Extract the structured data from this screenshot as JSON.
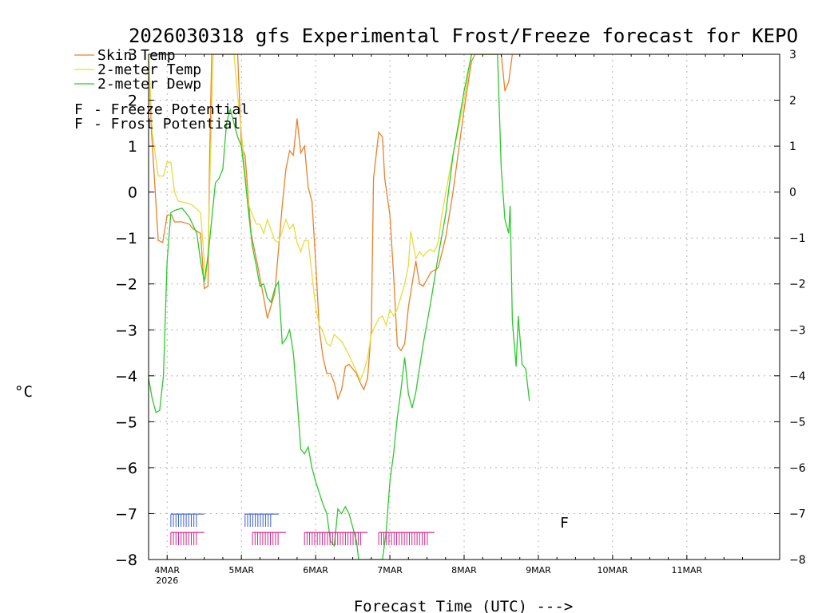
{
  "chart_data": {
    "type": "line",
    "title": "2026030318 gfs Experimental Frost/Freeze forecast for KEPO",
    "xlabel": "Forecast Time (UTC) --->",
    "ylabel": "°C",
    "ylim": [
      -8,
      3
    ],
    "yticks": [
      "3",
      "2",
      "1",
      "0",
      "−1",
      "−2",
      "−3",
      "−4",
      "−5",
      "−6",
      "−7",
      "−8"
    ],
    "xlim_days": [
      -0.25,
      8.25
    ],
    "x_unit": "days since 4MAR 00Z",
    "x_ticks": [
      {
        "label": "4MAR",
        "sub": "2026",
        "day": 0
      },
      {
        "label": "5MAR",
        "sub": "",
        "day": 1
      },
      {
        "label": "6MAR",
        "sub": "",
        "day": 2
      },
      {
        "label": "7MAR",
        "sub": "",
        "day": 3
      },
      {
        "label": "8MAR",
        "sub": "",
        "day": 4
      },
      {
        "label": "9MAR",
        "sub": "",
        "day": 5
      },
      {
        "label": "10MAR",
        "sub": "",
        "day": 6
      },
      {
        "label": "11MAR",
        "sub": "",
        "day": 7
      }
    ],
    "series": [
      {
        "name": "Skin Temp",
        "color": "#e8822a",
        "points": [
          [
            -0.25,
            3
          ],
          [
            -0.21,
            1.3
          ],
          [
            -0.12,
            -1.05
          ],
          [
            -0.06,
            -1.1
          ],
          [
            0.0,
            -0.5
          ],
          [
            0.06,
            -0.5
          ],
          [
            0.1,
            -0.65
          ],
          [
            0.2,
            -0.65
          ],
          [
            0.3,
            -0.7
          ],
          [
            0.35,
            -0.8
          ],
          [
            0.45,
            -0.9
          ],
          [
            0.5,
            -2.1
          ],
          [
            0.55,
            -2.05
          ],
          [
            0.57,
            0.5
          ],
          [
            0.6,
            3
          ],
          [
            0.95,
            3
          ],
          [
            1.0,
            1.0
          ],
          [
            1.05,
            0.8
          ],
          [
            1.13,
            -0.9
          ],
          [
            1.22,
            -1.6
          ],
          [
            1.3,
            -2.3
          ],
          [
            1.35,
            -2.75
          ],
          [
            1.45,
            -2.2
          ],
          [
            1.55,
            -0.3
          ],
          [
            1.6,
            0.5
          ],
          [
            1.65,
            0.9
          ],
          [
            1.7,
            0.8
          ],
          [
            1.75,
            1.6
          ],
          [
            1.8,
            0.85
          ],
          [
            1.85,
            1.0
          ],
          [
            1.9,
            0.1
          ],
          [
            1.95,
            -0.2
          ],
          [
            2.0,
            -1.5
          ],
          [
            2.05,
            -3.0
          ],
          [
            2.1,
            -3.6
          ],
          [
            2.15,
            -3.95
          ],
          [
            2.2,
            -3.95
          ],
          [
            2.25,
            -4.15
          ],
          [
            2.3,
            -4.5
          ],
          [
            2.35,
            -4.3
          ],
          [
            2.4,
            -3.8
          ],
          [
            2.45,
            -3.75
          ],
          [
            2.55,
            -3.95
          ],
          [
            2.6,
            -4.15
          ],
          [
            2.65,
            -4.3
          ],
          [
            2.7,
            -4.05
          ],
          [
            2.75,
            -3.0
          ],
          [
            2.78,
            0.3
          ],
          [
            2.85,
            1.3
          ],
          [
            2.9,
            1.2
          ],
          [
            2.93,
            0.3
          ],
          [
            3.0,
            -0.5
          ],
          [
            3.05,
            -1.8
          ],
          [
            3.1,
            -3.35
          ],
          [
            3.15,
            -3.45
          ],
          [
            3.2,
            -3.3
          ],
          [
            3.25,
            -2.5
          ],
          [
            3.3,
            -2.0
          ],
          [
            3.35,
            -1.5
          ],
          [
            3.4,
            -2.0
          ],
          [
            3.45,
            -2.05
          ],
          [
            3.55,
            -1.75
          ],
          [
            3.65,
            -1.65
          ],
          [
            3.75,
            -1.0
          ],
          [
            3.85,
            0.0
          ],
          [
            4.0,
            1.8
          ],
          [
            4.1,
            2.85
          ],
          [
            4.15,
            3
          ],
          [
            4.5,
            3
          ],
          [
            4.55,
            2.2
          ],
          [
            4.6,
            2.4
          ],
          [
            4.65,
            3
          ]
        ]
      },
      {
        "name": "2-meter Temp",
        "color": "#e6dc3c",
        "points": [
          [
            -0.25,
            3
          ],
          [
            -0.2,
            1.3
          ],
          [
            -0.12,
            0.35
          ],
          [
            -0.05,
            0.35
          ],
          [
            0.0,
            0.65
          ],
          [
            0.05,
            0.65
          ],
          [
            0.1,
            0.0
          ],
          [
            0.15,
            -0.2
          ],
          [
            0.3,
            -0.25
          ],
          [
            0.35,
            -0.3
          ],
          [
            0.45,
            -0.45
          ],
          [
            0.5,
            -1.5
          ],
          [
            0.52,
            -1.9
          ],
          [
            0.55,
            -1.3
          ],
          [
            0.58,
            0.5
          ],
          [
            0.62,
            3
          ],
          [
            0.9,
            3
          ],
          [
            0.95,
            2.1
          ],
          [
            1.0,
            1.3
          ],
          [
            1.05,
            0.4
          ],
          [
            1.1,
            -0.3
          ],
          [
            1.15,
            -0.5
          ],
          [
            1.2,
            -0.7
          ],
          [
            1.25,
            -0.7
          ],
          [
            1.3,
            -0.9
          ],
          [
            1.35,
            -0.6
          ],
          [
            1.45,
            -1.05
          ],
          [
            1.5,
            -1.1
          ],
          [
            1.6,
            -0.6
          ],
          [
            1.65,
            -0.8
          ],
          [
            1.7,
            -0.7
          ],
          [
            1.75,
            -1.1
          ],
          [
            1.8,
            -1.3
          ],
          [
            1.85,
            -1.05
          ],
          [
            1.9,
            -1.05
          ],
          [
            2.0,
            -2.5
          ],
          [
            2.05,
            -2.9
          ],
          [
            2.1,
            -3.05
          ],
          [
            2.15,
            -3.3
          ],
          [
            2.2,
            -3.35
          ],
          [
            2.25,
            -3.1
          ],
          [
            2.35,
            -3.25
          ],
          [
            2.45,
            -3.55
          ],
          [
            2.55,
            -3.9
          ],
          [
            2.6,
            -4.1
          ],
          [
            2.65,
            -3.9
          ],
          [
            2.7,
            -3.6
          ],
          [
            2.75,
            -3.1
          ],
          [
            2.85,
            -2.75
          ],
          [
            2.9,
            -2.7
          ],
          [
            2.95,
            -2.9
          ],
          [
            3.0,
            -2.55
          ],
          [
            3.05,
            -2.7
          ],
          [
            3.1,
            -2.55
          ],
          [
            3.2,
            -2.0
          ],
          [
            3.25,
            -1.6
          ],
          [
            3.28,
            -0.85
          ],
          [
            3.35,
            -1.45
          ],
          [
            3.4,
            -1.3
          ],
          [
            3.45,
            -1.4
          ],
          [
            3.5,
            -1.3
          ],
          [
            3.55,
            -1.25
          ],
          [
            3.6,
            -1.3
          ],
          [
            3.65,
            -1.1
          ],
          [
            3.7,
            -0.5
          ],
          [
            3.8,
            0.4
          ],
          [
            3.9,
            1.2
          ],
          [
            4.0,
            2.0
          ],
          [
            4.1,
            3
          ],
          [
            4.45,
            3
          ]
        ]
      },
      {
        "name": "2-meter Dewp",
        "color": "#2ec82e",
        "points": [
          [
            -0.25,
            -4.05
          ],
          [
            -0.2,
            -4.5
          ],
          [
            -0.15,
            -4.8
          ],
          [
            -0.1,
            -4.75
          ],
          [
            -0.05,
            -4.0
          ],
          [
            0.0,
            -1.5
          ],
          [
            0.05,
            -0.45
          ],
          [
            0.1,
            -0.4
          ],
          [
            0.2,
            -0.35
          ],
          [
            0.25,
            -0.45
          ],
          [
            0.3,
            -0.55
          ],
          [
            0.4,
            -0.9
          ],
          [
            0.45,
            -1.5
          ],
          [
            0.5,
            -1.95
          ],
          [
            0.55,
            -1.4
          ],
          [
            0.6,
            -0.6
          ],
          [
            0.65,
            0.2
          ],
          [
            0.7,
            0.3
          ],
          [
            0.75,
            0.5
          ],
          [
            0.8,
            1.5
          ],
          [
            0.85,
            1.8
          ],
          [
            0.9,
            1.5
          ],
          [
            0.95,
            1.2
          ],
          [
            1.0,
            1.0
          ],
          [
            1.05,
            0.3
          ],
          [
            1.1,
            -0.5
          ],
          [
            1.15,
            -1.2
          ],
          [
            1.2,
            -1.6
          ],
          [
            1.25,
            -2.05
          ],
          [
            1.3,
            -2.0
          ],
          [
            1.35,
            -2.3
          ],
          [
            1.4,
            -2.4
          ],
          [
            1.45,
            -2.1
          ],
          [
            1.5,
            -1.95
          ],
          [
            1.55,
            -3.3
          ],
          [
            1.6,
            -3.2
          ],
          [
            1.65,
            -3.0
          ],
          [
            1.7,
            -3.5
          ],
          [
            1.75,
            -4.5
          ],
          [
            1.8,
            -5.6
          ],
          [
            1.85,
            -5.7
          ],
          [
            1.9,
            -5.55
          ],
          [
            1.95,
            -6.0
          ],
          [
            2.0,
            -6.3
          ],
          [
            2.1,
            -6.8
          ],
          [
            2.15,
            -7.0
          ],
          [
            2.2,
            -7.6
          ],
          [
            2.25,
            -7.7
          ],
          [
            2.3,
            -6.9
          ],
          [
            2.35,
            -7.0
          ],
          [
            2.4,
            -6.85
          ],
          [
            2.45,
            -7.0
          ],
          [
            2.5,
            -7.3
          ],
          [
            2.55,
            -7.6
          ],
          [
            2.58,
            -8
          ],
          [
            2.9,
            -8
          ],
          [
            2.95,
            -7.4
          ],
          [
            3.0,
            -6.3
          ],
          [
            3.05,
            -5.7
          ],
          [
            3.1,
            -4.9
          ],
          [
            3.15,
            -4.3
          ],
          [
            3.2,
            -3.6
          ],
          [
            3.25,
            -4.4
          ],
          [
            3.3,
            -4.7
          ],
          [
            3.35,
            -4.35
          ],
          [
            3.45,
            -3.3
          ],
          [
            3.55,
            -2.4
          ],
          [
            3.65,
            -1.4
          ],
          [
            3.75,
            -0.5
          ],
          [
            3.85,
            0.8
          ],
          [
            4.0,
            2.2
          ],
          [
            4.1,
            3
          ],
          [
            4.45,
            3
          ],
          [
            4.5,
            0.5
          ],
          [
            4.55,
            -0.6
          ],
          [
            4.6,
            -0.9
          ],
          [
            4.62,
            -0.3
          ],
          [
            4.65,
            -2.8
          ],
          [
            4.7,
            -3.8
          ],
          [
            4.73,
            -2.7
          ],
          [
            4.78,
            -3.75
          ],
          [
            4.83,
            -3.85
          ],
          [
            4.88,
            -4.55
          ]
        ]
      }
    ],
    "legend": {
      "position": "top-left",
      "entries": [
        "Skin Temp",
        "2-meter Temp",
        "2-meter Dewp"
      ]
    },
    "potential_legend": [
      {
        "symbol": "F",
        "label": "- Freeze Potential",
        "color": "#d0268c"
      },
      {
        "symbol": "F",
        "label": "- Frost Potential",
        "color": "#3b5fcf"
      }
    ],
    "frost_marker_label": "F",
    "frost_bands": [
      [
        0.05,
        0.5
      ],
      [
        1.05,
        1.5
      ]
    ],
    "freeze_bands": [
      [
        0.05,
        0.5
      ],
      [
        1.15,
        1.6
      ],
      [
        1.85,
        2.7
      ],
      [
        2.85,
        3.6
      ]
    ],
    "frost_single_day": 5.35,
    "band_y": {
      "frost": -7.15,
      "freeze": -7.55
    },
    "colors": {
      "frost": "#3b5fcf",
      "freeze": "#d0268c",
      "grid": "#b4b4b4",
      "axis": "#000000"
    }
  }
}
